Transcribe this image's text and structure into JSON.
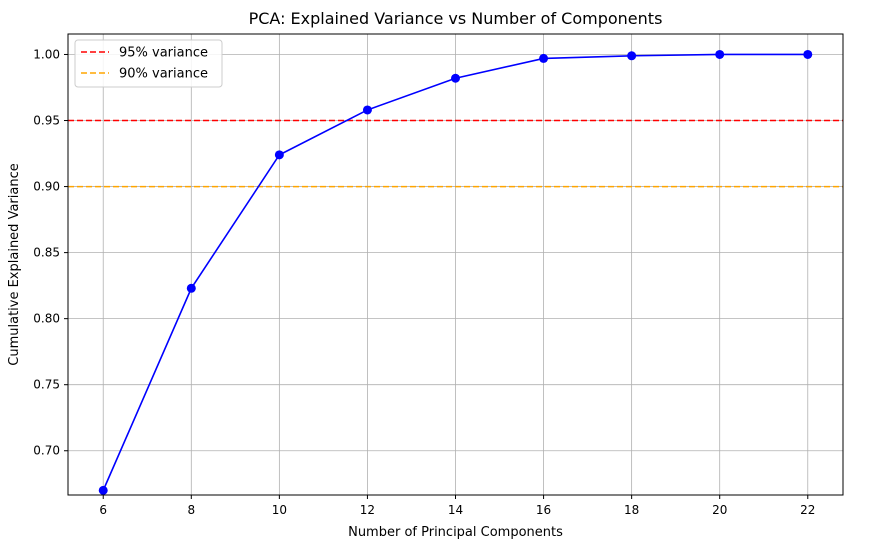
{
  "chart_data": {
    "type": "line",
    "title": "PCA: Explained Variance vs Number of Components",
    "xlabel": "Number of Principal Components",
    "ylabel": "Cumulative Explained Variance",
    "xlim": [
      5.2,
      22.8
    ],
    "ylim": [
      0.6665,
      1.0155
    ],
    "xticks": [
      6,
      8,
      10,
      12,
      14,
      16,
      18,
      20,
      22
    ],
    "yticks": [
      0.7,
      0.75,
      0.8,
      0.85,
      0.9,
      0.95,
      1.0
    ],
    "ytick_labels": [
      "0.70",
      "0.75",
      "0.80",
      "0.85",
      "0.90",
      "0.95",
      "1.00"
    ],
    "grid": true,
    "legend_position": "top-left",
    "series": [
      {
        "color": "#0000ff",
        "marker": "circle",
        "x": [
          6,
          8,
          10,
          12,
          14,
          16,
          18,
          20,
          22
        ],
        "y": [
          0.67,
          0.823,
          0.924,
          0.958,
          0.982,
          0.997,
          0.999,
          1.0,
          1.0
        ]
      }
    ],
    "reference_lines": [
      {
        "name": "95% variance",
        "y": 0.95,
        "color": "#ff0000",
        "style": "dashed"
      },
      {
        "name": "90% variance",
        "y": 0.9,
        "color": "#ffa500",
        "style": "dashed"
      }
    ]
  }
}
